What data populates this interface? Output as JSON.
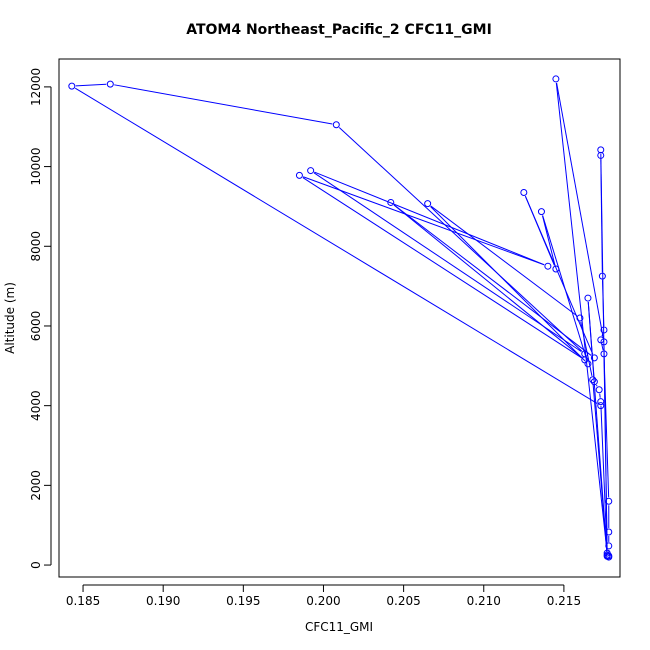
{
  "chart_data": {
    "type": "line",
    "title": "ATOM4 Northeast_Pacific_2 CFC11_GMI",
    "xlabel": "CFC11_GMI",
    "ylabel": "Altitude (m)",
    "xlim": [
      0.1835,
      0.2185
    ],
    "ylim": [
      -300,
      12700
    ],
    "xticks": [
      "0.185",
      "0.190",
      "0.195",
      "0.200",
      "0.205",
      "0.210",
      "0.215"
    ],
    "xtick_values": [
      0.185,
      0.19,
      0.195,
      0.2,
      0.205,
      0.21,
      0.215
    ],
    "yticks": [
      "0",
      "2000",
      "4000",
      "6000",
      "8000",
      "10000",
      "12000"
    ],
    "ytick_values": [
      0,
      2000,
      4000,
      6000,
      8000,
      10000,
      12000
    ],
    "grid": false,
    "series": [
      {
        "color": "#0000ff",
        "marker": "open-circle",
        "points": [
          {
            "x": 0.2178,
            "y": 200
          },
          {
            "x": 0.2178,
            "y": 230
          },
          {
            "x": 0.2178,
            "y": 480
          },
          {
            "x": 0.2178,
            "y": 830
          },
          {
            "x": 0.2178,
            "y": 1600
          },
          {
            "x": 0.2175,
            "y": 5300
          },
          {
            "x": 0.2173,
            "y": 5650
          },
          {
            "x": 0.2175,
            "y": 5900
          },
          {
            "x": 0.2174,
            "y": 7250
          },
          {
            "x": 0.2173,
            "y": 10280
          },
          {
            "x": 0.2173,
            "y": 10420
          },
          {
            "x": 0.2177,
            "y": 300
          },
          {
            "x": 0.2145,
            "y": 12200
          },
          {
            "x": 0.2175,
            "y": 5600
          },
          {
            "x": 0.2177,
            "y": 250
          },
          {
            "x": 0.2173,
            "y": 4100
          },
          {
            "x": 0.2172,
            "y": 4400
          },
          {
            "x": 0.2169,
            "y": 4600
          },
          {
            "x": 0.2165,
            "y": 6700
          },
          {
            "x": 0.2177,
            "y": 220
          },
          {
            "x": 0.2168,
            "y": 4650
          },
          {
            "x": 0.216,
            "y": 6200
          },
          {
            "x": 0.2065,
            "y": 9070
          },
          {
            "x": 0.2165,
            "y": 5050
          },
          {
            "x": 0.2136,
            "y": 8870
          },
          {
            "x": 0.2145,
            "y": 7430
          },
          {
            "x": 0.2125,
            "y": 9350
          },
          {
            "x": 0.2169,
            "y": 5200
          },
          {
            "x": 0.2042,
            "y": 9100
          },
          {
            "x": 0.2163,
            "y": 5150
          },
          {
            "x": 0.1985,
            "y": 9780
          },
          {
            "x": 0.214,
            "y": 7500
          },
          {
            "x": 0.1992,
            "y": 9900
          },
          {
            "x": 0.2163,
            "y": 5300
          },
          {
            "x": 0.2008,
            "y": 11050
          },
          {
            "x": 0.1867,
            "y": 12070
          },
          {
            "x": 0.1843,
            "y": 12020
          },
          {
            "x": 0.2173,
            "y": 4000
          }
        ]
      }
    ]
  }
}
